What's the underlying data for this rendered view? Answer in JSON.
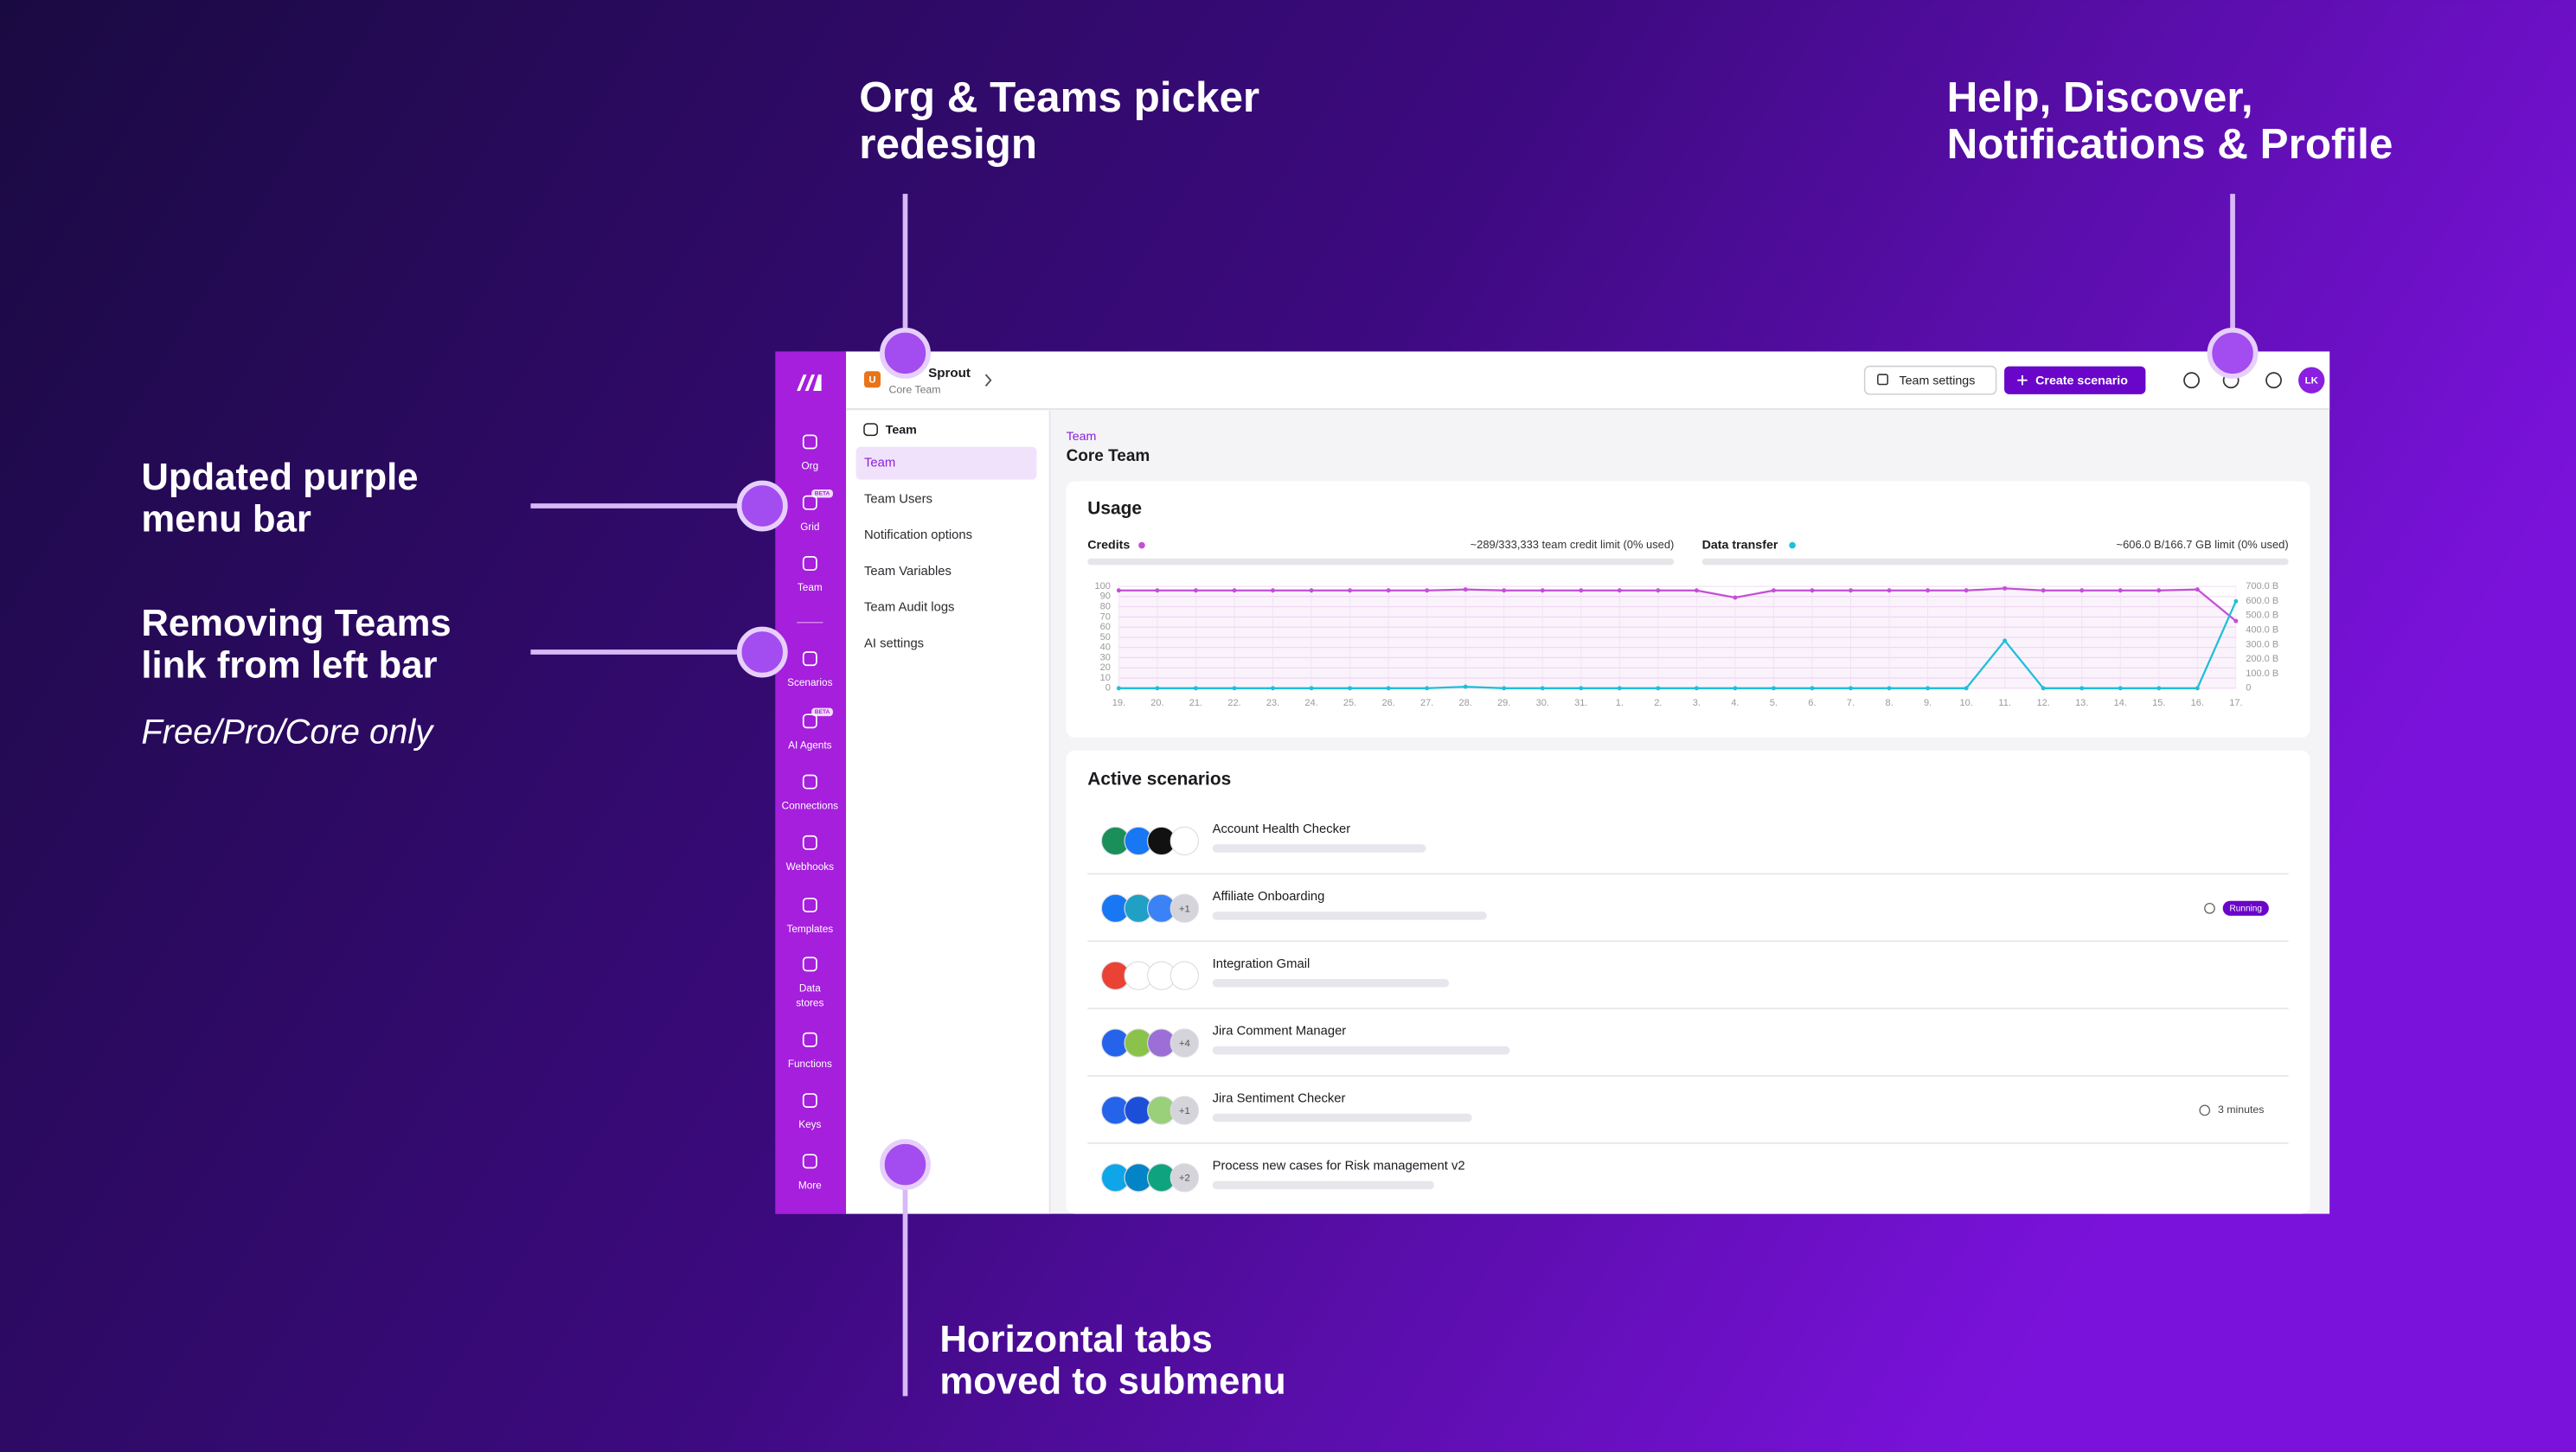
{
  "annotations": [
    {
      "lines": [
        "Org & Teams picker",
        "redesign"
      ]
    },
    {
      "lines": [
        "Help, Discover,",
        "Notifications & Profile"
      ]
    },
    {
      "lines": [
        "Updated purple",
        "menu bar"
      ]
    },
    {
      "lines": [
        "Removing Teams",
        "link from left bar"
      ],
      "note": "Free/Pro/Core only"
    },
    {
      "lines": [
        "Horizontal tabs",
        "moved to submenu"
      ]
    }
  ],
  "sidebar": {
    "items": [
      {
        "lines": [
          "Org"
        ]
      },
      {
        "lines": [
          "Grid"
        ],
        "badge": "BETA"
      },
      {
        "lines": [
          "Team"
        ]
      },
      {
        "lines": [
          "Scenarios"
        ]
      },
      {
        "lines": [
          "AI Agents"
        ],
        "badge": "BETA"
      },
      {
        "lines": [
          "Connections"
        ]
      },
      {
        "lines": [
          "Webhooks"
        ]
      },
      {
        "lines": [
          "Templates"
        ]
      },
      {
        "lines": [
          "Data",
          "stores"
        ]
      },
      {
        "lines": [
          "Functions"
        ]
      },
      {
        "lines": [
          "Keys"
        ]
      },
      {
        "lines": [
          "More"
        ]
      }
    ]
  },
  "header": {
    "org_initial": "U",
    "org_name": "Sprout",
    "team_name": "Core Team",
    "buttons": [
      "Team settings",
      "Create scenario"
    ],
    "avatar": "LK"
  },
  "submenu": {
    "heading": "Team",
    "active": 0,
    "items": [
      "Team",
      "Team Users",
      "Notification options",
      "Team Variables",
      "Team Audit logs",
      "AI settings"
    ]
  },
  "main": {
    "breadcrumb": "Team",
    "title": "Core Team",
    "usage": {
      "title": "Usage",
      "credits_limit": "~289/333,333 team credit limit (0% used)",
      "transfer_limit": "~606.0 B/166.7 GB limit (0% used)",
      "chart": {
        "type": "line",
        "x": [
          "19.",
          "20.",
          "21.",
          "22.",
          "23.",
          "24.",
          "25.",
          "26.",
          "27.",
          "28.",
          "29.",
          "30.",
          "31.",
          "1.",
          "2.",
          "3.",
          "4.",
          "5.",
          "6.",
          "7.",
          "8.",
          "9.",
          "10.",
          "11.",
          "12.",
          "13.",
          "14.",
          "15.",
          "16.",
          "17."
        ],
        "series": [
          {
            "name": "Credits",
            "color": "#c44ed6",
            "axis": "y",
            "values": [
              96,
              96,
              96,
              96,
              96,
              96,
              96,
              96,
              96,
              97,
              96,
              96,
              96,
              96,
              96,
              96,
              89,
              96,
              96,
              96,
              96,
              96,
              96,
              98,
              96,
              96,
              96,
              96,
              97,
              66
            ]
          },
          {
            "name": "Data transfer",
            "color": "#1ec0d8",
            "axis": "y2",
            "values": [
              0,
              0,
              0,
              0,
              0,
              0,
              0,
              0,
              0,
              10,
              0,
              0,
              0,
              0,
              0,
              0,
              0,
              0,
              0,
              0,
              0,
              0,
              0,
              327,
              0,
              0,
              0,
              0,
              0,
              598
            ]
          }
        ],
        "ylim": [
          0,
          100
        ],
        "yticks": [
          0,
          10,
          20,
          30,
          40,
          50,
          60,
          70,
          80,
          90,
          100
        ],
        "y2lim": [
          0,
          700
        ],
        "y2ticks": [
          0,
          {
            "value": 100,
            "label": "100.0 B"
          },
          {
            "value": 200,
            "label": "200.0 B"
          },
          {
            "value": 300,
            "label": "300.0 B"
          },
          {
            "value": 400,
            "label": "400.0 B"
          },
          {
            "value": 500,
            "label": "500.0 B"
          },
          {
            "value": 600,
            "label": "600.0 B"
          },
          {
            "value": 700,
            "label": "700.0 B"
          }
        ],
        "grid": true
      }
    },
    "scenarios": {
      "title": "Active scenarios",
      "rows": [
        {
          "name": "Account Health Checker"
        },
        {
          "name": "Affiliate Onboarding",
          "extra": "+1",
          "status": "Running"
        },
        {
          "name": "Integration Gmail"
        },
        {
          "name": "Jira Comment Manager",
          "extra": "+4"
        },
        {
          "name": "Jira Sentiment Checker",
          "extra": "+1",
          "status": "3 minutes"
        },
        {
          "name": "Process new cases for Risk management v2",
          "extra": "+2"
        }
      ]
    }
  }
}
